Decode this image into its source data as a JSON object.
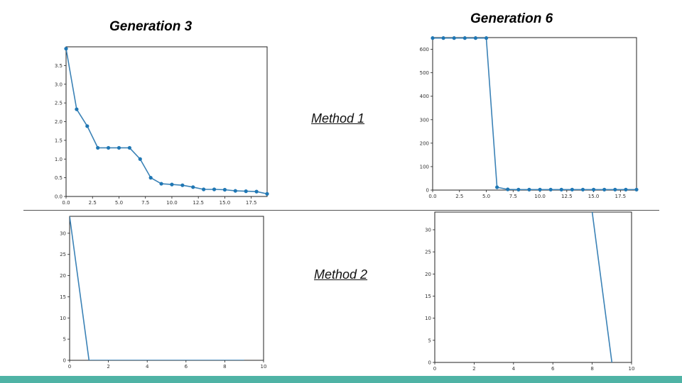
{
  "headings": {
    "gen3": "Generation 3",
    "gen6": "Generation 6"
  },
  "methods": {
    "m1": "Method 1",
    "m2": "Method 2"
  },
  "colors": {
    "line": "#3b82b6",
    "marker": "#1f77b4",
    "accent_bar": "#4fb3a5"
  },
  "chart_data": [
    {
      "id": "gen3-method1",
      "type": "line",
      "markers": true,
      "x": [
        0,
        1,
        2,
        3,
        4,
        5,
        6,
        7,
        8,
        9,
        10,
        11,
        12,
        13,
        14,
        15,
        16,
        17,
        18,
        19
      ],
      "y": [
        3.95,
        2.33,
        1.88,
        1.3,
        1.3,
        1.3,
        1.3,
        1.0,
        0.5,
        0.34,
        0.32,
        0.3,
        0.25,
        0.19,
        0.19,
        0.18,
        0.15,
        0.14,
        0.13,
        0.07
      ],
      "xlim": [
        0,
        19
      ],
      "ylim": [
        0,
        4.0
      ],
      "xticks": [
        0,
        2.5,
        5,
        7.5,
        10,
        12.5,
        15,
        17.5
      ],
      "xtick_labels": [
        "0.0",
        "2.5",
        "5.0",
        "7.5",
        "10.0",
        "12.5",
        "15.0",
        "17.5"
      ],
      "yticks": [
        0,
        0.5,
        1,
        1.5,
        2,
        2.5,
        3,
        3.5
      ],
      "ytick_labels": [
        "0.0",
        "0.5",
        "1.0",
        "1.5",
        "2.0",
        "2.5",
        "3.0",
        "3.5"
      ]
    },
    {
      "id": "gen6-method1",
      "type": "line",
      "markers": true,
      "x": [
        0,
        1,
        2,
        3,
        4,
        5,
        6,
        7,
        8,
        9,
        10,
        11,
        12,
        13,
        14,
        15,
        16,
        17,
        18,
        19
      ],
      "y": [
        648,
        648,
        648,
        648,
        648,
        648,
        12,
        3,
        2,
        2,
        2,
        2,
        2,
        2,
        2,
        2,
        2,
        2,
        2,
        2
      ],
      "xlim": [
        0,
        19
      ],
      "ylim": [
        0,
        650
      ],
      "xticks": [
        0,
        2.5,
        5,
        7.5,
        10,
        12.5,
        15,
        17.5
      ],
      "xtick_labels": [
        "0.0",
        "2.5",
        "5.0",
        "7.5",
        "10.0",
        "12.5",
        "15.0",
        "17.5"
      ],
      "yticks": [
        0,
        100,
        200,
        300,
        400,
        500,
        600
      ],
      "ytick_labels": [
        "0",
        "100",
        "200",
        "300",
        "400",
        "500",
        "600"
      ]
    },
    {
      "id": "gen3-method2",
      "type": "line",
      "markers": false,
      "x": [
        0,
        1,
        2,
        3,
        4,
        5,
        6,
        7,
        8,
        9
      ],
      "y": [
        34,
        0,
        0,
        0,
        0,
        0,
        0,
        0,
        0,
        0
      ],
      "xlim": [
        0,
        10
      ],
      "ylim": [
        0,
        34
      ],
      "xticks": [
        0,
        2,
        4,
        6,
        8,
        10
      ],
      "xtick_labels": [
        "0",
        "2",
        "4",
        "6",
        "8",
        "10"
      ],
      "yticks": [
        0,
        5,
        10,
        15,
        20,
        25,
        30
      ],
      "ytick_labels": [
        "0",
        "5",
        "10",
        "15",
        "20",
        "25",
        "30"
      ]
    },
    {
      "id": "gen6-method2",
      "type": "line",
      "markers": false,
      "x": [
        8,
        9
      ],
      "y": [
        34,
        0
      ],
      "xlim": [
        0,
        10
      ],
      "ylim": [
        0,
        34
      ],
      "xticks": [
        0,
        2,
        4,
        6,
        8,
        10
      ],
      "xtick_labels": [
        "0",
        "2",
        "4",
        "6",
        "8",
        "10"
      ],
      "yticks": [
        0,
        5,
        10,
        15,
        20,
        25,
        30
      ],
      "ytick_labels": [
        "0",
        "5",
        "10",
        "15",
        "20",
        "25",
        "30"
      ]
    }
  ]
}
